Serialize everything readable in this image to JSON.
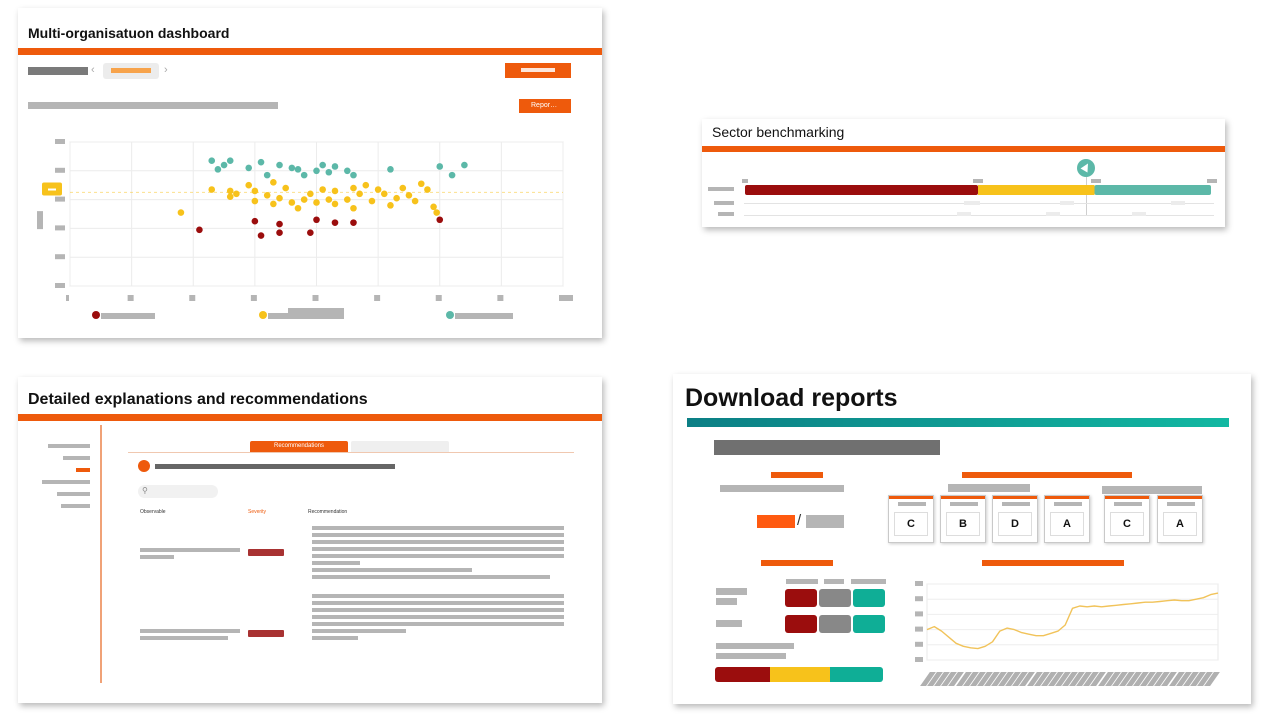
{
  "colors": {
    "accent": "#ee5a0c",
    "red": "#9b0d0d",
    "yellow": "#f7c21b",
    "teal": "#5cb8a8",
    "teal_bright": "#0fae96",
    "gray": "#8a8a8a",
    "placeholder": "#b5b5b5"
  },
  "panels": {
    "dashboard": {
      "title": "Multi-organisatuon dashboard",
      "report_button": "Repor…"
    },
    "benchmark": {
      "title": "Sector benchmarking"
    },
    "details": {
      "title": "Detailed explanations and recommendations",
      "tabs": [
        {
          "label": "Recommendations",
          "active": true
        },
        {
          "label": "",
          "active": false
        }
      ],
      "columns": {
        "observable": "Observable",
        "severity": "Severity",
        "recommendation": "Recommendation"
      }
    },
    "download": {
      "title": "Download reports",
      "grades": [
        "C",
        "B",
        "D",
        "A",
        "C",
        "A"
      ],
      "separator": "/"
    }
  },
  "chart_data": [
    {
      "type": "scatter",
      "title": "",
      "xlabel": "",
      "ylabel": "",
      "xlim": [
        0,
        8
      ],
      "ylim": [
        0,
        5
      ],
      "grid": true,
      "series": [
        {
          "color": "#9b0d0d",
          "points": [
            [
              2.1,
              1.95
            ],
            [
              3.0,
              2.25
            ],
            [
              3.1,
              1.75
            ],
            [
              3.4,
              2.15
            ],
            [
              3.4,
              1.85
            ],
            [
              3.9,
              1.85
            ],
            [
              4.0,
              2.3
            ],
            [
              4.3,
              2.2
            ],
            [
              4.6,
              2.2
            ],
            [
              6.0,
              2.3
            ]
          ]
        },
        {
          "color": "#f7c21b",
          "points": [
            [
              1.8,
              2.55
            ],
            [
              2.3,
              3.35
            ],
            [
              2.6,
              3.1
            ],
            [
              2.6,
              3.3
            ],
            [
              2.7,
              3.2
            ],
            [
              2.9,
              3.5
            ],
            [
              3.0,
              2.95
            ],
            [
              3.0,
              3.3
            ],
            [
              3.2,
              3.15
            ],
            [
              3.3,
              2.85
            ],
            [
              3.3,
              3.6
            ],
            [
              3.4,
              3.05
            ],
            [
              3.5,
              3.4
            ],
            [
              3.6,
              2.9
            ],
            [
              3.7,
              2.7
            ],
            [
              3.8,
              3.0
            ],
            [
              3.9,
              3.2
            ],
            [
              4.0,
              2.9
            ],
            [
              4.1,
              3.35
            ],
            [
              4.2,
              3.0
            ],
            [
              4.3,
              2.85
            ],
            [
              4.3,
              3.3
            ],
            [
              4.5,
              3.0
            ],
            [
              4.6,
              2.7
            ],
            [
              4.6,
              3.4
            ],
            [
              4.7,
              3.2
            ],
            [
              4.8,
              3.5
            ],
            [
              4.9,
              2.95
            ],
            [
              5.0,
              3.35
            ],
            [
              5.1,
              3.2
            ],
            [
              5.2,
              2.8
            ],
            [
              5.3,
              3.05
            ],
            [
              5.4,
              3.4
            ],
            [
              5.5,
              3.15
            ],
            [
              5.6,
              2.95
            ],
            [
              5.7,
              3.55
            ],
            [
              5.8,
              3.35
            ],
            [
              5.9,
              2.75
            ],
            [
              5.95,
              2.55
            ]
          ]
        },
        {
          "color": "#5cb8a8",
          "points": [
            [
              2.3,
              4.35
            ],
            [
              2.4,
              4.05
            ],
            [
              2.5,
              4.2
            ],
            [
              2.6,
              4.35
            ],
            [
              2.9,
              4.1
            ],
            [
              3.1,
              4.3
            ],
            [
              3.2,
              3.85
            ],
            [
              3.4,
              4.2
            ],
            [
              3.6,
              4.1
            ],
            [
              3.7,
              4.05
            ],
            [
              3.8,
              3.85
            ],
            [
              4.0,
              4.0
            ],
            [
              4.1,
              4.2
            ],
            [
              4.2,
              3.95
            ],
            [
              4.3,
              4.15
            ],
            [
              4.5,
              4.0
            ],
            [
              4.6,
              3.85
            ],
            [
              5.2,
              4.05
            ],
            [
              6.0,
              4.15
            ],
            [
              6.2,
              3.85
            ],
            [
              6.4,
              4.2
            ]
          ]
        }
      ]
    },
    {
      "type": "bar",
      "title": "",
      "categories": [
        "red",
        "yellow",
        "teal"
      ],
      "values": [
        50,
        25,
        25
      ],
      "colors": [
        "#9b0d0d",
        "#f7c21b",
        "#5cb8a8"
      ],
      "orientation": "horizontal-stacked"
    },
    {
      "type": "line",
      "title": "",
      "xlabel": "",
      "ylabel": "",
      "x": [
        0,
        1,
        2,
        3,
        4,
        5,
        6,
        7,
        8,
        9,
        10,
        11,
        12,
        13,
        14,
        15,
        16,
        17,
        18,
        19,
        20,
        21,
        22,
        23,
        24,
        25,
        26,
        27,
        28,
        29,
        30,
        31,
        32,
        33,
        34,
        35,
        36,
        37,
        38,
        39,
        40
      ],
      "y": [
        2.0,
        2.2,
        1.9,
        1.5,
        1.1,
        0.9,
        0.8,
        0.75,
        0.9,
        1.2,
        1.9,
        2.1,
        2.0,
        1.8,
        1.7,
        1.6,
        1.6,
        1.75,
        1.9,
        2.3,
        3.4,
        3.55,
        3.5,
        3.55,
        3.5,
        3.55,
        3.6,
        3.65,
        3.7,
        3.75,
        3.8,
        3.8,
        3.85,
        3.9,
        3.95,
        3.9,
        3.9,
        4.0,
        4.1,
        4.3,
        4.4
      ],
      "ylim": [
        0,
        5
      ],
      "grid": true
    }
  ]
}
